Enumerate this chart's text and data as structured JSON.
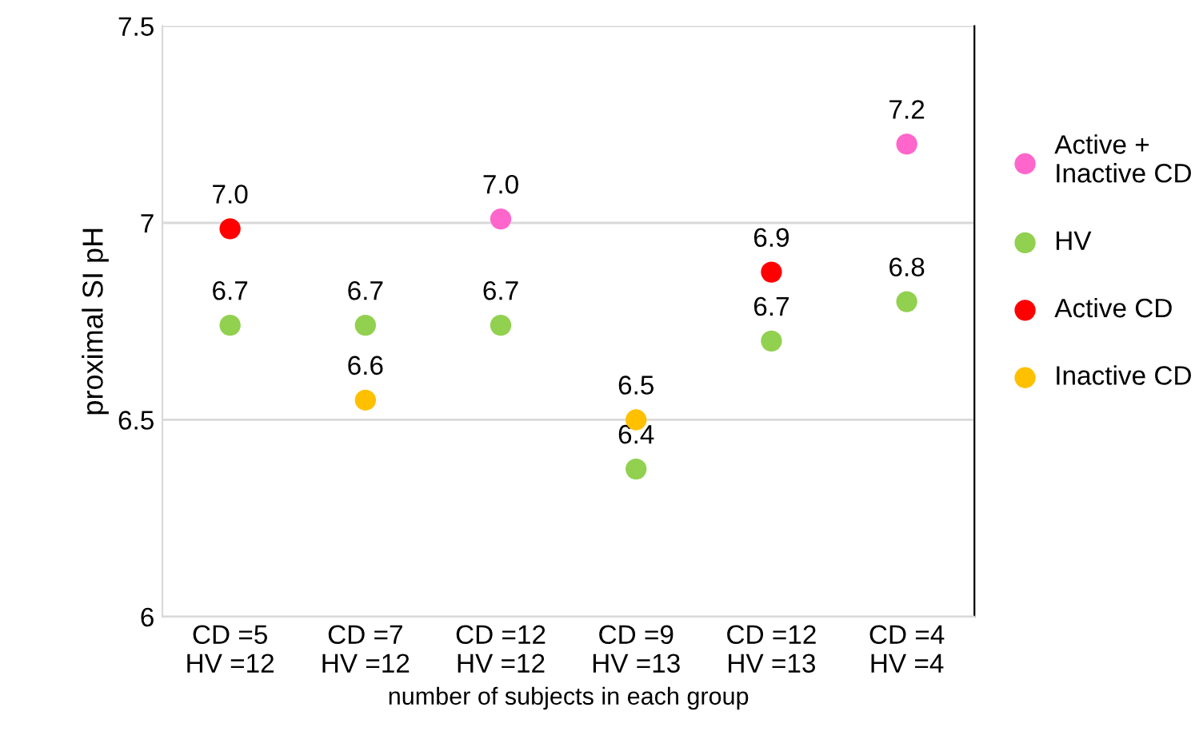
{
  "chart_data": {
    "type": "scatter",
    "xlabel": "number of subjects in each group",
    "ylabel": "proximal SI pH",
    "categories": [
      "CD =5\nHV =12",
      "CD =7\nHV =12",
      "CD =12\nHV =12",
      "CD =9\nHV =13",
      "CD =12\nHV =13",
      "CD =4\nHV =4"
    ],
    "series": [
      {
        "name": "Active +\nInactive CD",
        "color": "#ff66cc",
        "values": [
          null,
          null,
          7.01,
          null,
          null,
          7.2
        ],
        "value_labels": [
          null,
          null,
          "7.0",
          null,
          null,
          "7.2"
        ]
      },
      {
        "name": "HV",
        "color": "#92d050",
        "values": [
          6.74,
          6.74,
          6.74,
          6.375,
          6.7,
          6.8
        ],
        "value_labels": [
          "6.7",
          "6.7",
          "6.7",
          "6.4",
          "6.7",
          "6.8"
        ]
      },
      {
        "name": "Active CD",
        "color": "#ff0000",
        "values": [
          6.985,
          null,
          null,
          null,
          6.875,
          null
        ],
        "value_labels": [
          "7.0",
          null,
          null,
          null,
          "6.9",
          null
        ]
      },
      {
        "name": "Inactive CD",
        "color": "#ffc000",
        "values": [
          null,
          6.55,
          null,
          6.5,
          null,
          null
        ],
        "value_labels": [
          null,
          "6.6",
          null,
          "6.5",
          null,
          null
        ]
      }
    ],
    "ylim": [
      6,
      7.5
    ],
    "yticks": [
      6,
      6.5,
      7,
      7.5
    ],
    "grid": "y",
    "legend": "right",
    "marker": "circle"
  }
}
